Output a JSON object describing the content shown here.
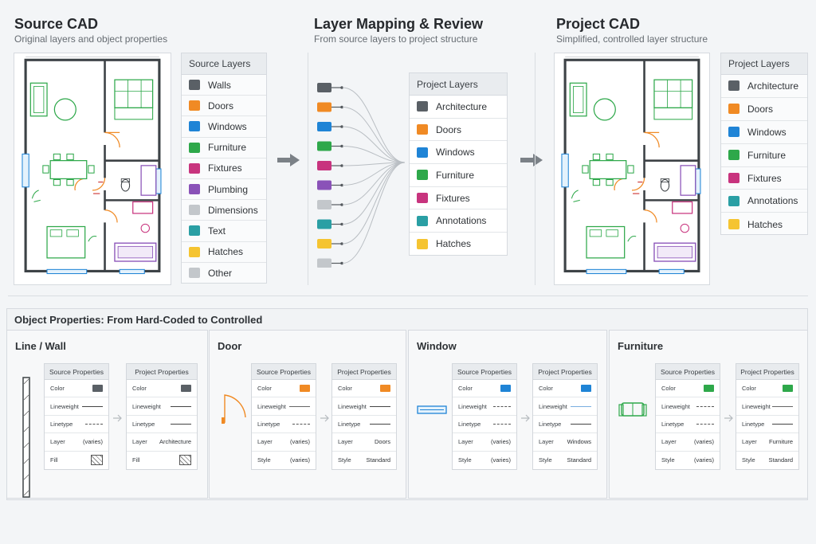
{
  "source": {
    "title": "Source CAD",
    "subtitle": "Original layers and object properties",
    "legend_title": "Source Layers",
    "layers": [
      {
        "name": "Walls",
        "color": "#5a6066"
      },
      {
        "name": "Doors",
        "color": "#f08a24"
      },
      {
        "name": "Windows",
        "color": "#1f84d6"
      },
      {
        "name": "Furniture",
        "color": "#2ea84a"
      },
      {
        "name": "Fixtures",
        "color": "#c8347e"
      },
      {
        "name": "Plumbing",
        "color": "#8a52b8"
      },
      {
        "name": "Dimensions",
        "color": "#c3c7cb"
      },
      {
        "name": "Text",
        "color": "#2a9fa4"
      },
      {
        "name": "Hatches",
        "color": "#f5c431"
      },
      {
        "name": "Other",
        "color": "#c3c7cb"
      }
    ]
  },
  "mapping": {
    "title": "Layer Mapping & Review",
    "subtitle": "From source layers to project structure",
    "legend_title": "Project Layers",
    "source_chips": [
      "#5a6066",
      "#f08a24",
      "#1f84d6",
      "#2ea84a",
      "#c8347e",
      "#8a52b8",
      "#c3c7cb",
      "#2a9fa4",
      "#f5c431",
      "#c3c7cb"
    ],
    "layers": [
      {
        "name": "Architecture",
        "color": "#5a6066"
      },
      {
        "name": "Doors",
        "color": "#f08a24"
      },
      {
        "name": "Windows",
        "color": "#1f84d6"
      },
      {
        "name": "Furniture",
        "color": "#2ea84a"
      },
      {
        "name": "Fixtures",
        "color": "#c8347e"
      },
      {
        "name": "Annotations",
        "color": "#2a9fa4"
      },
      {
        "name": "Hatches",
        "color": "#f5c431"
      }
    ]
  },
  "project": {
    "title": "Project CAD",
    "subtitle": "Simplified, controlled layer structure",
    "legend_title": "Project Layers",
    "layers": [
      {
        "name": "Architecture",
        "color": "#5a6066"
      },
      {
        "name": "Doors",
        "color": "#f08a24"
      },
      {
        "name": "Windows",
        "color": "#1f84d6"
      },
      {
        "name": "Furniture",
        "color": "#2ea84a"
      },
      {
        "name": "Fixtures",
        "color": "#c8347e"
      },
      {
        "name": "Annotations",
        "color": "#2a9fa4"
      },
      {
        "name": "Hatches",
        "color": "#f5c431"
      }
    ]
  },
  "properties": {
    "title": "Object Properties: From Hard-Coded to Controlled",
    "source_header": "Source Properties",
    "project_header": "Project Properties",
    "panels": [
      {
        "name": "Line / Wall",
        "color": "#5a6066",
        "source": [
          {
            "label": "Color",
            "kind": "swatch"
          },
          {
            "label": "Lineweight",
            "kind": "line"
          },
          {
            "label": "Linetype",
            "kind": "dash"
          },
          {
            "label": "Layer",
            "kind": "text",
            "value": "(varies)"
          },
          {
            "label": "Fill",
            "kind": "hatch"
          }
        ],
        "project": [
          {
            "label": "Color",
            "kind": "swatch"
          },
          {
            "label": "Lineweight",
            "kind": "line"
          },
          {
            "label": "Linetype",
            "kind": "line"
          },
          {
            "label": "Layer",
            "kind": "text",
            "value": "Architecture"
          },
          {
            "label": "Fill",
            "kind": "hatch"
          }
        ]
      },
      {
        "name": "Door",
        "color": "#f08a24",
        "source": [
          {
            "label": "Color",
            "kind": "swatch"
          },
          {
            "label": "Lineweight",
            "kind": "thin"
          },
          {
            "label": "Linetype",
            "kind": "dash"
          },
          {
            "label": "Layer",
            "kind": "text",
            "value": "(varies)"
          },
          {
            "label": "Style",
            "kind": "text",
            "value": "(varies)"
          }
        ],
        "project": [
          {
            "label": "Color",
            "kind": "swatch"
          },
          {
            "label": "Lineweight",
            "kind": "line"
          },
          {
            "label": "Linetype",
            "kind": "line"
          },
          {
            "label": "Layer",
            "kind": "text",
            "value": "Doors"
          },
          {
            "label": "Style",
            "kind": "text",
            "value": "Standard"
          }
        ]
      },
      {
        "name": "Window",
        "color": "#1f84d6",
        "source": [
          {
            "label": "Color",
            "kind": "swatch"
          },
          {
            "label": "Lineweight",
            "kind": "dash"
          },
          {
            "label": "Linetype",
            "kind": "dash"
          },
          {
            "label": "Layer",
            "kind": "text",
            "value": "(varies)"
          },
          {
            "label": "Style",
            "kind": "text",
            "value": "(varies)"
          }
        ],
        "project": [
          {
            "label": "Color",
            "kind": "swatch"
          },
          {
            "label": "Lineweight",
            "kind": "thin"
          },
          {
            "label": "Linetype",
            "kind": "line"
          },
          {
            "label": "Layer",
            "kind": "text",
            "value": "Windows"
          },
          {
            "label": "Style",
            "kind": "text",
            "value": "Standard"
          }
        ]
      },
      {
        "name": "Furniture",
        "color": "#2ea84a",
        "source": [
          {
            "label": "Color",
            "kind": "swatch"
          },
          {
            "label": "Lineweight",
            "kind": "dash"
          },
          {
            "label": "Linetype",
            "kind": "dash"
          },
          {
            "label": "Layer",
            "kind": "text",
            "value": "(varies)"
          },
          {
            "label": "Style",
            "kind": "text",
            "value": "(varies)"
          }
        ],
        "project": [
          {
            "label": "Color",
            "kind": "swatch"
          },
          {
            "label": "Lineweight",
            "kind": "thin"
          },
          {
            "label": "Linetype",
            "kind": "line"
          },
          {
            "label": "Layer",
            "kind": "text",
            "value": "Furniture"
          },
          {
            "label": "Style",
            "kind": "text",
            "value": "Standard"
          }
        ]
      }
    ]
  }
}
